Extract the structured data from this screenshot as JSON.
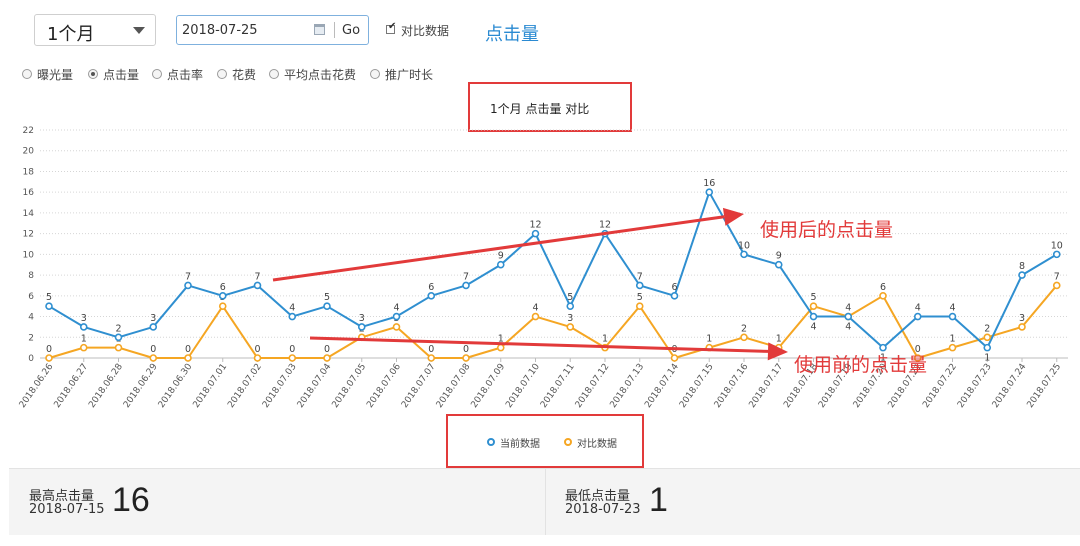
{
  "toolbar": {
    "period_value": "1个月",
    "date_value": "2018-07-25",
    "go_label": "Go",
    "compare_label": "对比数据",
    "compare_checked": true,
    "metric_title": "点击量"
  },
  "metrics": [
    {
      "label": "曝光量",
      "selected": false
    },
    {
      "label": "点击量",
      "selected": true
    },
    {
      "label": "点击率",
      "selected": false
    },
    {
      "label": "花费",
      "selected": false
    },
    {
      "label": "平均点击花费",
      "selected": false
    },
    {
      "label": "推广时长",
      "selected": false
    }
  ],
  "colors": {
    "current": "#2f8fd0",
    "compare": "#f5a623",
    "annotation": "#e23a3a"
  },
  "annotations": {
    "after": "使用后的点击量",
    "before": "使用前的点击量"
  },
  "chart_data": {
    "type": "line",
    "title": "1个月  点击量  对比",
    "categories": [
      "2018.06.26",
      "2018.06.27",
      "2018.06.28",
      "2018.06.29",
      "2018.06.30",
      "2018.07.01",
      "2018.07.02",
      "2018.07.03",
      "2018.07.04",
      "2018.07.05",
      "2018.07.06",
      "2018.07.07",
      "2018.07.08",
      "2018.07.09",
      "2018.07.10",
      "2018.07.11",
      "2018.07.12",
      "2018.07.13",
      "2018.07.14",
      "2018.07.15",
      "2018.07.16",
      "2018.07.17",
      "2018.07.18",
      "2018.07.19",
      "2018.07.20",
      "2018.07.21",
      "2018.07.22",
      "2018.07.23",
      "2018.07.24",
      "2018.07.25"
    ],
    "y_ticks": [
      "0",
      "2",
      "4",
      "6",
      "8",
      "10",
      "12",
      "14",
      "16",
      "18",
      "20",
      "22"
    ],
    "ylim": [
      0,
      22
    ],
    "grid": true,
    "legend_position": "bottom-center",
    "series": [
      {
        "name": "当前数据",
        "values": [
          5,
          3,
          2,
          3,
          7,
          6,
          7,
          4,
          5,
          3,
          4,
          6,
          7,
          9,
          12,
          5,
          12,
          7,
          6,
          16,
          10,
          9,
          4,
          4,
          1,
          4,
          4,
          1,
          8,
          10
        ]
      },
      {
        "name": "对比数据",
        "values": [
          0,
          1,
          1,
          0,
          0,
          5,
          0,
          0,
          0,
          2,
          3,
          0,
          0,
          1,
          4,
          3,
          1,
          5,
          0,
          1,
          2,
          1,
          5,
          4,
          6,
          0,
          1,
          2,
          3,
          7
        ]
      }
    ]
  },
  "stats": {
    "max": {
      "label": "最高点击量",
      "date": "2018-07-15",
      "value": "16"
    },
    "min": {
      "label": "最低点击量",
      "date": "2018-07-23",
      "value": "1"
    }
  }
}
